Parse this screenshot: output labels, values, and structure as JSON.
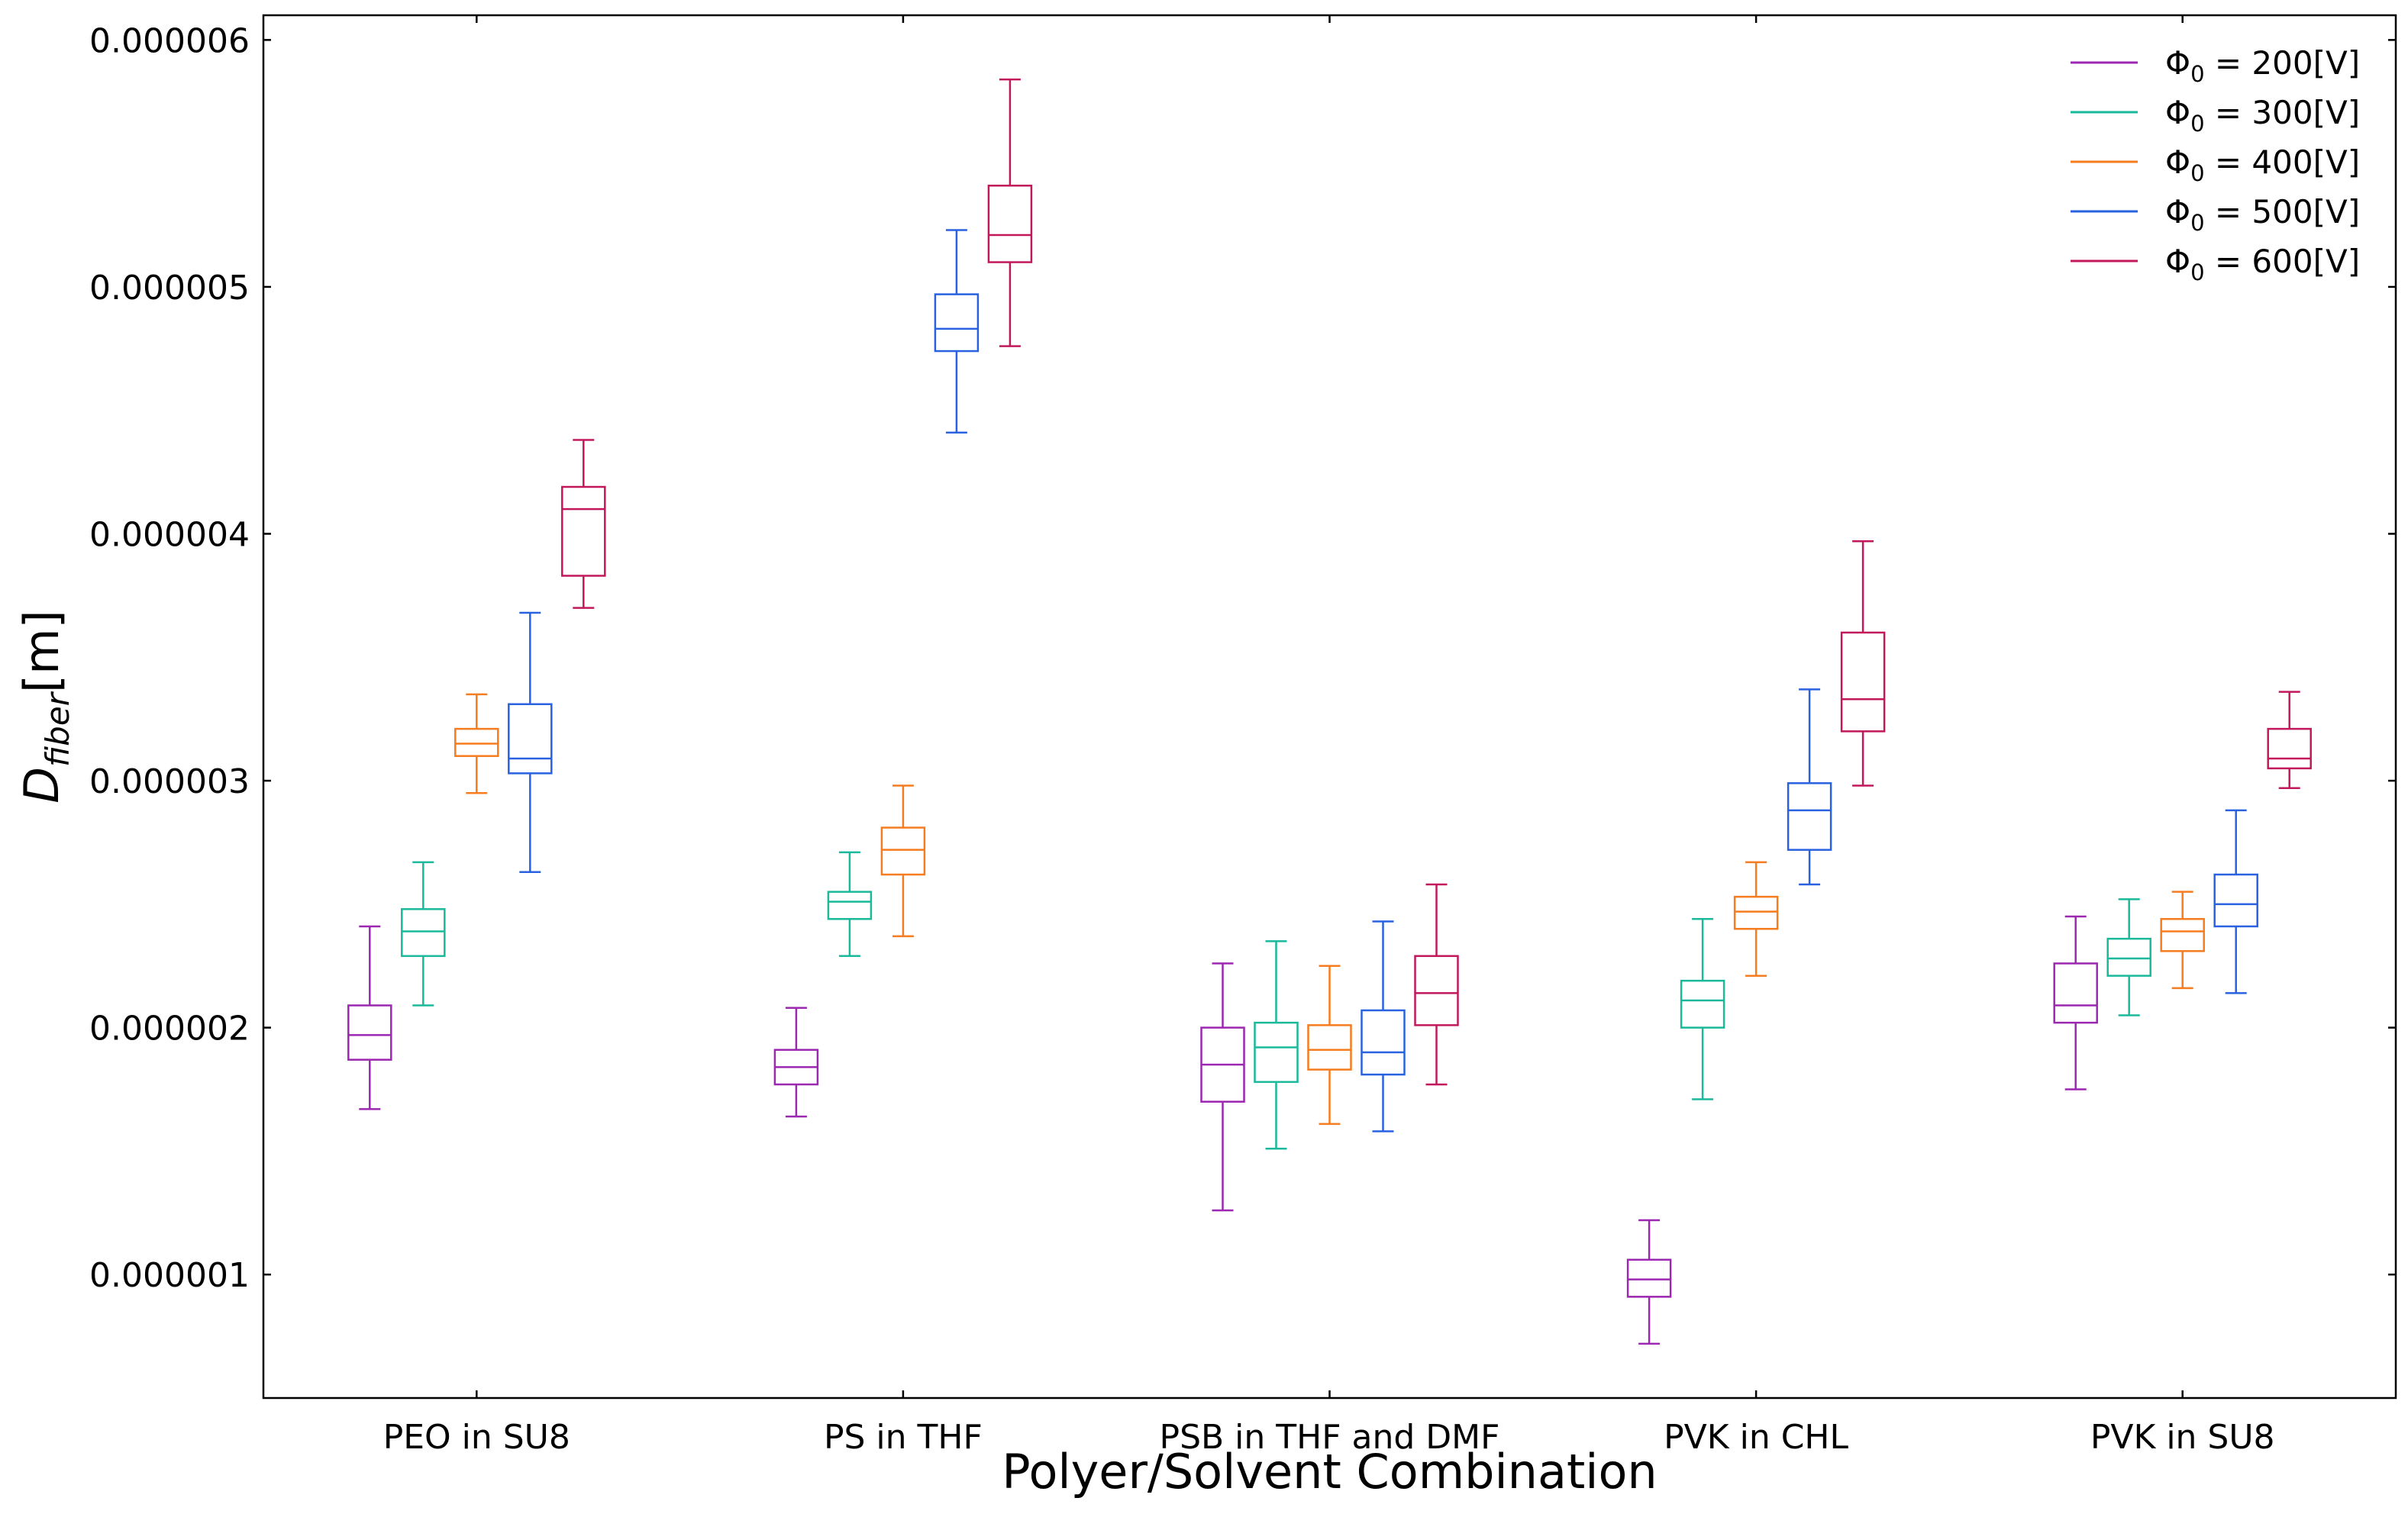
{
  "chart_data": {
    "type": "box",
    "title": "",
    "xlabel": "Polyer/Solvent Combination",
    "ylabel": {
      "base": "D",
      "sub": "fiber",
      "unit": "[m]"
    },
    "ylim": [
      5e-07,
      6.1e-06
    ],
    "yticks": [
      1e-06,
      2e-06,
      3e-06,
      4e-06,
      5e-06,
      6e-06
    ],
    "ytick_labels": [
      "0.000001",
      "0.000002",
      "0.000003",
      "0.000004",
      "0.000005",
      "0.000006"
    ],
    "categories": [
      "PEO in SU8",
      "PS in THF",
      "PSB in THF and DMF",
      "PVK in CHL",
      "PVK in SU8"
    ],
    "grid": false,
    "legend_position": "top-right",
    "series": [
      {
        "name": {
          "sym": "Φ",
          "sub": "0",
          "rest": " = 200[V]"
        },
        "color": "#9c27b0",
        "boxes": [
          {
            "whislo": 1.67e-06,
            "q1": 1.87e-06,
            "med": 1.97e-06,
            "q3": 2.09e-06,
            "whishi": 2.41e-06
          },
          {
            "whislo": 1.64e-06,
            "q1": 1.77e-06,
            "med": 1.84e-06,
            "q3": 1.91e-06,
            "whishi": 2.08e-06
          },
          {
            "whislo": 1.26e-06,
            "q1": 1.7e-06,
            "med": 1.85e-06,
            "q3": 2e-06,
            "whishi": 2.26e-06
          },
          {
            "whislo": 7.2e-07,
            "q1": 9.1e-07,
            "med": 9.8e-07,
            "q3": 1.06e-06,
            "whishi": 1.22e-06
          },
          {
            "whislo": 1.75e-06,
            "q1": 2.02e-06,
            "med": 2.09e-06,
            "q3": 2.26e-06,
            "whishi": 2.45e-06
          }
        ]
      },
      {
        "name": {
          "sym": "Φ",
          "sub": "0",
          "rest": " = 300[V]"
        },
        "color": "#1ab99b",
        "boxes": [
          {
            "whislo": 2.09e-06,
            "q1": 2.29e-06,
            "med": 2.39e-06,
            "q3": 2.48e-06,
            "whishi": 2.67e-06
          },
          {
            "whislo": 2.29e-06,
            "q1": 2.44e-06,
            "med": 2.51e-06,
            "q3": 2.55e-06,
            "whishi": 2.71e-06
          },
          {
            "whislo": 1.51e-06,
            "q1": 1.78e-06,
            "med": 1.92e-06,
            "q3": 2.02e-06,
            "whishi": 2.35e-06
          },
          {
            "whislo": 1.71e-06,
            "q1": 2e-06,
            "med": 2.11e-06,
            "q3": 2.19e-06,
            "whishi": 2.44e-06
          },
          {
            "whislo": 2.05e-06,
            "q1": 2.21e-06,
            "med": 2.28e-06,
            "q3": 2.36e-06,
            "whishi": 2.52e-06
          }
        ]
      },
      {
        "name": {
          "sym": "Φ",
          "sub": "0",
          "rest": " = 400[V]"
        },
        "color": "#f57c1f",
        "boxes": [
          {
            "whislo": 2.95e-06,
            "q1": 3.1e-06,
            "med": 3.15e-06,
            "q3": 3.21e-06,
            "whishi": 3.35e-06
          },
          {
            "whislo": 2.37e-06,
            "q1": 2.62e-06,
            "med": 2.72e-06,
            "q3": 2.81e-06,
            "whishi": 2.98e-06
          },
          {
            "whislo": 1.61e-06,
            "q1": 1.83e-06,
            "med": 1.91e-06,
            "q3": 2.01e-06,
            "whishi": 2.25e-06
          },
          {
            "whislo": 2.21e-06,
            "q1": 2.4e-06,
            "med": 2.47e-06,
            "q3": 2.53e-06,
            "whishi": 2.67e-06
          },
          {
            "whislo": 2.16e-06,
            "q1": 2.31e-06,
            "med": 2.39e-06,
            "q3": 2.44e-06,
            "whishi": 2.55e-06
          }
        ]
      },
      {
        "name": {
          "sym": "Φ",
          "sub": "0",
          "rest": " = 500[V]"
        },
        "color": "#2962e0",
        "boxes": [
          {
            "whislo": 2.63e-06,
            "q1": 3.03e-06,
            "med": 3.09e-06,
            "q3": 3.31e-06,
            "whishi": 3.68e-06
          },
          {
            "whislo": 4.41e-06,
            "q1": 4.74e-06,
            "med": 4.83e-06,
            "q3": 4.97e-06,
            "whishi": 5.23e-06
          },
          {
            "whislo": 1.58e-06,
            "q1": 1.81e-06,
            "med": 1.9e-06,
            "q3": 2.07e-06,
            "whishi": 2.43e-06
          },
          {
            "whislo": 2.58e-06,
            "q1": 2.72e-06,
            "med": 2.88e-06,
            "q3": 2.99e-06,
            "whishi": 3.37e-06
          },
          {
            "whislo": 2.14e-06,
            "q1": 2.41e-06,
            "med": 2.5e-06,
            "q3": 2.62e-06,
            "whishi": 2.88e-06
          }
        ]
      },
      {
        "name": {
          "sym": "Φ",
          "sub": "0",
          "rest": " = 600[V]"
        },
        "color": "#c2185b",
        "boxes": [
          {
            "whislo": 3.7e-06,
            "q1": 3.83e-06,
            "med": 4.1e-06,
            "q3": 4.19e-06,
            "whishi": 4.38e-06
          },
          {
            "whislo": 4.76e-06,
            "q1": 5.1e-06,
            "med": 5.21e-06,
            "q3": 5.41e-06,
            "whishi": 5.84e-06
          },
          {
            "whislo": 1.77e-06,
            "q1": 2.01e-06,
            "med": 2.14e-06,
            "q3": 2.29e-06,
            "whishi": 2.58e-06
          },
          {
            "whislo": 2.98e-06,
            "q1": 3.2e-06,
            "med": 3.33e-06,
            "q3": 3.6e-06,
            "whishi": 3.97e-06
          },
          {
            "whislo": 2.97e-06,
            "q1": 3.05e-06,
            "med": 3.09e-06,
            "q3": 3.21e-06,
            "whishi": 3.36e-06
          }
        ]
      }
    ]
  }
}
